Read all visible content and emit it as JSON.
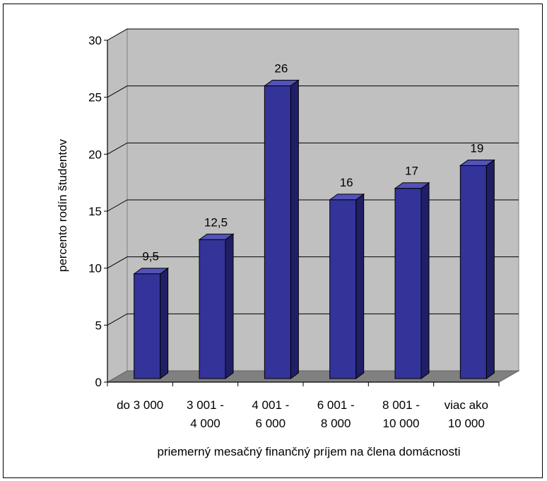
{
  "chart_data": {
    "type": "bar",
    "title": "",
    "xlabel": "priemerný mesačný finančný príjem na člena domácnosti",
    "ylabel": "percento rodín študentov",
    "ylim": [
      0,
      30
    ],
    "yticks": [
      0,
      5,
      10,
      15,
      20,
      25,
      30
    ],
    "ytick_labels": [
      "0",
      "5",
      "10",
      "15",
      "20",
      "25",
      "30"
    ],
    "grid": true,
    "legend": "none",
    "categories": [
      [
        "do 3 000"
      ],
      [
        "3 001 -",
        "4 000"
      ],
      [
        "4 001 -",
        "6 000"
      ],
      [
        "6 001 -",
        "8 000"
      ],
      [
        "8 001 -",
        "10 000"
      ],
      [
        "viac ako",
        "10 000"
      ]
    ],
    "values": [
      9.5,
      12.5,
      26,
      16,
      17,
      19
    ],
    "value_labels": [
      "9,5",
      "12,5",
      "26",
      "16",
      "17",
      "19"
    ],
    "colors": {
      "bar_front": "#33339a",
      "bar_side": "#1f1f66",
      "bar_top": "#5252b8",
      "plot_wall": "#c0c0c0",
      "plot_floor": "#808080",
      "gridline": "#000000"
    }
  }
}
